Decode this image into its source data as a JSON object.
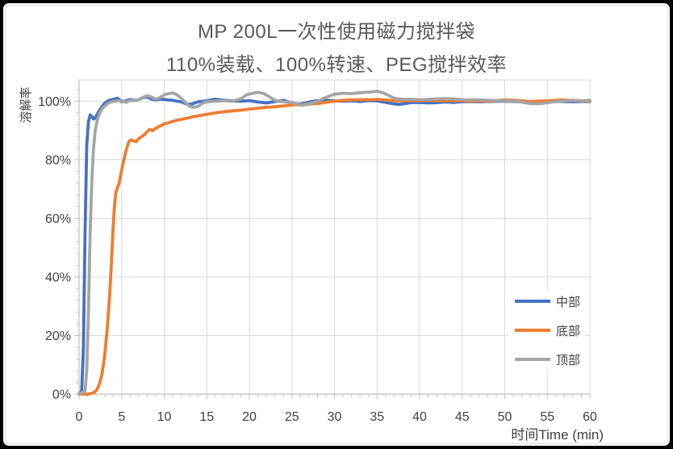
{
  "frame": {
    "outer_color": "#000000",
    "canvas_color": "#ffffff",
    "inner_border_color": "#d9d9d9"
  },
  "header": {
    "title": "MP 200L一次性使用磁力搅拌袋",
    "subtitle": "110%装载、100%转速、PEG搅拌效率",
    "title_color": "#595959"
  },
  "styles": {
    "gridline_color": "#d9d9d9",
    "axis_color": "#bfbfbf",
    "tick_label_color": "#404040",
    "axis_title_color": "#404040",
    "series_line_width": 3.8
  },
  "chart_data": {
    "type": "line",
    "title": "MP 200L一次性使用磁力搅拌袋",
    "subtitle": "110%装载、100%转速、PEG搅拌效率",
    "xlabel": "时间Time (min)",
    "ylabel": "溶解率",
    "xlim": [
      0,
      60
    ],
    "ylim": [
      0,
      107
    ],
    "grid": true,
    "legend_position": "inside-right",
    "x_ticks": [
      0,
      5,
      10,
      15,
      20,
      25,
      30,
      35,
      40,
      45,
      50,
      55,
      60
    ],
    "x_tick_labels": [
      "0",
      "5",
      "10",
      "15",
      "20",
      "25",
      "30",
      "35",
      "40",
      "45",
      "50",
      "55",
      "60"
    ],
    "x_minor_unit": 1,
    "y_ticks": [
      0,
      20,
      40,
      60,
      80,
      100
    ],
    "y_tick_labels": [
      "0%",
      "20%",
      "40%",
      "60%",
      "80%",
      "100%"
    ],
    "y_minor_unit": 4,
    "series": [
      {
        "name": "中部",
        "color": "#4472C4",
        "points": [
          [
            0,
            0
          ],
          [
            0.3,
            1
          ],
          [
            0.5,
            15
          ],
          [
            0.7,
            55
          ],
          [
            0.9,
            85
          ],
          [
            1.1,
            93
          ],
          [
            1.3,
            95.3
          ],
          [
            1.5,
            94.8
          ],
          [
            1.7,
            93.9
          ],
          [
            1.9,
            94.3
          ],
          [
            2.2,
            95.9
          ],
          [
            2.6,
            97.8
          ],
          [
            3,
            99.3
          ],
          [
            3.5,
            100.3
          ],
          [
            4,
            100.6
          ],
          [
            4.5,
            101
          ],
          [
            4.8,
            100.4
          ],
          [
            5,
            99.8
          ],
          [
            5.5,
            100.1
          ],
          [
            6,
            100.6
          ],
          [
            6.5,
            100.3
          ],
          [
            7,
            100.5
          ],
          [
            7.5,
            101.2
          ],
          [
            8,
            101.4
          ],
          [
            8.5,
            100.7
          ],
          [
            9,
            100.4
          ],
          [
            9.5,
            100.7
          ],
          [
            10,
            100.6
          ],
          [
            10.5,
            100.4
          ],
          [
            11,
            100.3
          ],
          [
            11.5,
            100
          ],
          [
            12,
            99.8
          ],
          [
            12.7,
            98.9
          ],
          [
            13.3,
            99.1
          ],
          [
            14,
            99.8
          ],
          [
            15,
            100.1
          ],
          [
            16,
            100.7
          ],
          [
            17,
            100.3
          ],
          [
            18,
            100.1
          ],
          [
            19,
            100
          ],
          [
            20,
            100.2
          ],
          [
            21,
            99.7
          ],
          [
            22,
            99.4
          ],
          [
            23,
            99.9
          ],
          [
            24,
            100.3
          ],
          [
            25,
            99.4
          ],
          [
            25.8,
            99
          ],
          [
            26.5,
            99.3
          ],
          [
            27.2,
            99.8
          ],
          [
            28,
            100.2
          ],
          [
            29,
            100.3
          ],
          [
            30,
            100.1
          ],
          [
            31,
            100
          ],
          [
            32,
            100.1
          ],
          [
            33,
            99.9
          ],
          [
            34,
            100.2
          ],
          [
            35,
            100.1
          ],
          [
            36,
            99.6
          ],
          [
            37,
            99.1
          ],
          [
            37.6,
            98.9
          ],
          [
            38.3,
            99.2
          ],
          [
            39,
            99.5
          ],
          [
            40,
            99.6
          ],
          [
            41,
            99.4
          ],
          [
            42,
            99.5
          ],
          [
            43,
            99.7
          ],
          [
            44,
            99.6
          ],
          [
            45,
            99.8
          ],
          [
            46,
            99.9
          ],
          [
            47,
            99.8
          ],
          [
            48,
            99.9
          ],
          [
            49,
            100
          ],
          [
            50,
            100
          ],
          [
            51,
            99.9
          ],
          [
            52,
            99.8
          ],
          [
            53,
            99.7
          ],
          [
            54,
            99.8
          ],
          [
            55,
            99.9
          ],
          [
            56,
            100
          ],
          [
            57,
            99.9
          ],
          [
            58,
            99.8
          ],
          [
            59,
            99.9
          ],
          [
            60,
            99.9
          ]
        ]
      },
      {
        "name": "底部",
        "color": "#ED7D31",
        "points": [
          [
            0,
            0
          ],
          [
            1,
            0
          ],
          [
            1.4,
            0.2
          ],
          [
            1.8,
            0.6
          ],
          [
            2.1,
            1.5
          ],
          [
            2.4,
            3.5
          ],
          [
            2.7,
            7
          ],
          [
            3,
            13
          ],
          [
            3.3,
            22
          ],
          [
            3.6,
            34
          ],
          [
            3.8,
            45
          ],
          [
            4,
            57
          ],
          [
            4.15,
            64
          ],
          [
            4.3,
            68.5
          ],
          [
            4.5,
            70.5
          ],
          [
            4.7,
            72
          ],
          [
            5,
            76.5
          ],
          [
            5.3,
            80.5
          ],
          [
            5.6,
            84
          ],
          [
            5.85,
            86.2
          ],
          [
            6.1,
            86.8
          ],
          [
            6.4,
            86.4
          ],
          [
            6.7,
            86.2
          ],
          [
            7,
            87.2
          ],
          [
            7.4,
            88
          ],
          [
            7.7,
            88.6
          ],
          [
            8,
            89.6
          ],
          [
            8.3,
            90.4
          ],
          [
            8.6,
            89.9
          ],
          [
            9,
            90.7
          ],
          [
            9.5,
            91.5
          ],
          [
            10,
            92.2
          ],
          [
            10.5,
            92.6
          ],
          [
            11,
            93.1
          ],
          [
            11.5,
            93.5
          ],
          [
            12,
            93.8
          ],
          [
            12.5,
            94.1
          ],
          [
            13,
            94.4
          ],
          [
            13.5,
            94.8
          ],
          [
            14,
            95
          ],
          [
            15,
            95.5
          ],
          [
            16,
            96
          ],
          [
            17,
            96.4
          ],
          [
            18,
            96.7
          ],
          [
            19,
            96.9
          ],
          [
            20,
            97.3
          ],
          [
            21,
            97.6
          ],
          [
            22,
            97.9
          ],
          [
            23,
            98.1
          ],
          [
            24,
            98.4
          ],
          [
            25,
            98.7
          ],
          [
            26,
            98.8
          ],
          [
            27,
            99
          ],
          [
            28,
            99.2
          ],
          [
            29,
            99.6
          ],
          [
            30,
            100
          ],
          [
            31,
            100.3
          ],
          [
            32,
            100.4
          ],
          [
            33,
            100.5
          ],
          [
            34,
            100.5
          ],
          [
            35,
            100.6
          ],
          [
            36,
            100.4
          ],
          [
            37,
            100.2
          ],
          [
            38,
            100.1
          ],
          [
            39,
            100.2
          ],
          [
            40,
            100.1
          ],
          [
            41,
            100.3
          ],
          [
            42,
            100.2
          ],
          [
            43,
            100.1
          ],
          [
            44,
            100.2
          ],
          [
            45,
            100.1
          ],
          [
            46,
            100
          ],
          [
            47,
            100.1
          ],
          [
            48,
            100
          ],
          [
            49,
            100.2
          ],
          [
            50,
            100.4
          ],
          [
            51,
            100.3
          ],
          [
            52,
            100.1
          ],
          [
            53,
            99.9
          ],
          [
            54,
            100
          ],
          [
            55,
            100.1
          ],
          [
            56,
            100.3
          ],
          [
            57,
            100.4
          ],
          [
            58,
            100.2
          ],
          [
            59,
            100.1
          ],
          [
            60,
            100
          ]
        ]
      },
      {
        "name": "顶部",
        "color": "#A5A5A5",
        "points": [
          [
            0,
            0
          ],
          [
            0.7,
            1
          ],
          [
            0.9,
            8
          ],
          [
            1.1,
            28
          ],
          [
            1.3,
            55
          ],
          [
            1.5,
            73
          ],
          [
            1.7,
            84
          ],
          [
            1.9,
            90
          ],
          [
            2.1,
            93
          ],
          [
            2.4,
            95.8
          ],
          [
            2.7,
            97.4
          ],
          [
            3,
            98.3
          ],
          [
            3.3,
            99
          ],
          [
            3.6,
            99.6
          ],
          [
            4,
            99.9
          ],
          [
            4.5,
            100.1
          ],
          [
            5,
            100.2
          ],
          [
            5.5,
            99.6
          ],
          [
            6,
            100.3
          ],
          [
            6.5,
            100.2
          ],
          [
            7,
            100.4
          ],
          [
            7.5,
            101.3
          ],
          [
            8,
            101.9
          ],
          [
            8.5,
            101.4
          ],
          [
            9,
            100.7
          ],
          [
            9.5,
            101.2
          ],
          [
            10,
            102.2
          ],
          [
            10.5,
            102.6
          ],
          [
            11,
            102.8
          ],
          [
            11.5,
            102.2
          ],
          [
            12,
            101
          ],
          [
            12.5,
            99.5
          ],
          [
            13,
            98.2
          ],
          [
            13.5,
            97.9
          ],
          [
            14,
            98.3
          ],
          [
            14.5,
            99.3
          ],
          [
            15,
            99.8
          ],
          [
            16,
            100
          ],
          [
            17,
            100.2
          ],
          [
            18,
            100
          ],
          [
            19,
            100.8
          ],
          [
            19.7,
            102.2
          ],
          [
            20.5,
            102.8
          ],
          [
            21,
            103
          ],
          [
            21.7,
            102.6
          ],
          [
            22.5,
            101.2
          ],
          [
            23,
            100.3
          ],
          [
            24,
            99.8
          ],
          [
            25,
            99.6
          ],
          [
            25.7,
            98.9
          ],
          [
            26.3,
            98.6
          ],
          [
            27,
            99.1
          ],
          [
            28,
            100
          ],
          [
            29,
            101.3
          ],
          [
            30,
            102.4
          ],
          [
            31,
            102.7
          ],
          [
            32,
            102.6
          ],
          [
            33,
            102.9
          ],
          [
            34,
            103.1
          ],
          [
            35,
            103.4
          ],
          [
            35.7,
            102.9
          ],
          [
            36.5,
            101.8
          ],
          [
            37,
            101
          ],
          [
            38,
            100.6
          ],
          [
            39,
            100.7
          ],
          [
            40,
            100.5
          ],
          [
            41,
            100.6
          ],
          [
            42,
            100.8
          ],
          [
            43,
            100.9
          ],
          [
            44,
            100.8
          ],
          [
            45,
            100.5
          ],
          [
            46,
            100.4
          ],
          [
            47,
            100.5
          ],
          [
            48,
            100.3
          ],
          [
            49,
            100.2
          ],
          [
            50,
            100.1
          ],
          [
            51,
            100
          ],
          [
            52,
            99.7
          ],
          [
            53,
            99.2
          ],
          [
            54,
            99.1
          ],
          [
            55,
            99.5
          ],
          [
            56,
            99.9
          ],
          [
            57,
            100.1
          ],
          [
            58,
            100.3
          ],
          [
            59,
            100.1
          ],
          [
            60,
            100.3
          ]
        ]
      }
    ]
  }
}
